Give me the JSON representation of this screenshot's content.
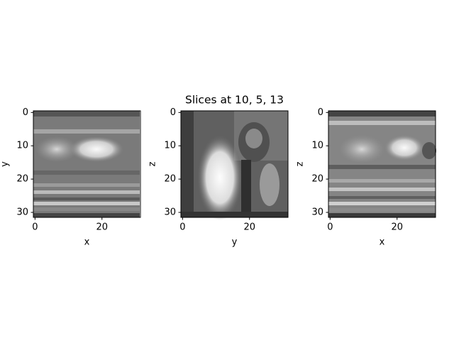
{
  "chart_data": [
    {
      "type": "image",
      "xlabel": "x",
      "ylabel": "y",
      "xlim": [
        -0.5,
        31.5
      ],
      "ylim": [
        31.5,
        -0.5
      ],
      "xticks": [
        0,
        20
      ],
      "yticks": [
        0,
        10,
        20,
        30
      ]
    },
    {
      "type": "image",
      "title": "Slices at 10, 5, 13",
      "xlabel": "y",
      "ylabel": "z",
      "xlim": [
        -0.5,
        31.5
      ],
      "ylim": [
        31.5,
        -0.5
      ],
      "xticks": [
        0,
        20
      ],
      "yticks": [
        0,
        10,
        20,
        30
      ]
    },
    {
      "type": "image",
      "xlabel": "x",
      "ylabel": "z",
      "xlim": [
        -0.5,
        31.5
      ],
      "ylim": [
        31.5,
        -0.5
      ],
      "xticks": [
        0,
        20
      ],
      "yticks": [
        0,
        10,
        20,
        30
      ]
    }
  ]
}
